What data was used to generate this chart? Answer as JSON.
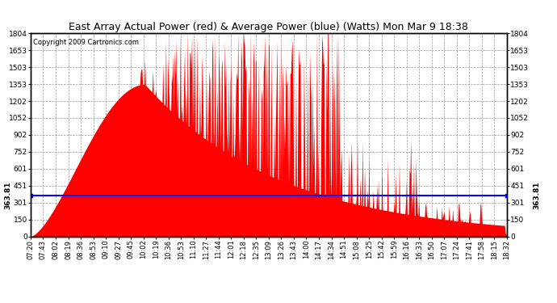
{
  "title": "East Array Actual Power (red) & Average Power (blue) (Watts) Mon Mar 9 18:38",
  "copyright": "Copyright 2009 Cartronics.com",
  "avg_power": 363.81,
  "avg_label": "363.81",
  "y_max": 1803.5,
  "y_min": 0.0,
  "y_ticks": [
    0.0,
    150.3,
    300.6,
    450.9,
    601.2,
    751.5,
    901.8,
    1052.0,
    1202.3,
    1352.6,
    1502.9,
    1653.2,
    1803.5
  ],
  "x_labels": [
    "07:20",
    "07:43",
    "08:02",
    "08:19",
    "08:36",
    "08:53",
    "09:10",
    "09:27",
    "09:45",
    "10:02",
    "10:19",
    "10:36",
    "10:53",
    "11:10",
    "11:27",
    "11:44",
    "12:01",
    "12:18",
    "12:35",
    "13:09",
    "13:26",
    "13:43",
    "14:00",
    "14:17",
    "14:34",
    "14:51",
    "15:08",
    "15:25",
    "15:42",
    "15:59",
    "16:16",
    "16:33",
    "16:50",
    "17:07",
    "17:24",
    "17:41",
    "17:58",
    "18:15",
    "18:32"
  ],
  "background_color": "#ffffff",
  "fill_color": "#ff0000",
  "avg_line_color": "#0000ff",
  "grid_color": "#999999",
  "title_color": "#000000",
  "border_color": "#000000",
  "title_fontsize": 9,
  "copyright_fontsize": 6,
  "tick_fontsize": 6.5,
  "avg_fontsize": 6.5
}
